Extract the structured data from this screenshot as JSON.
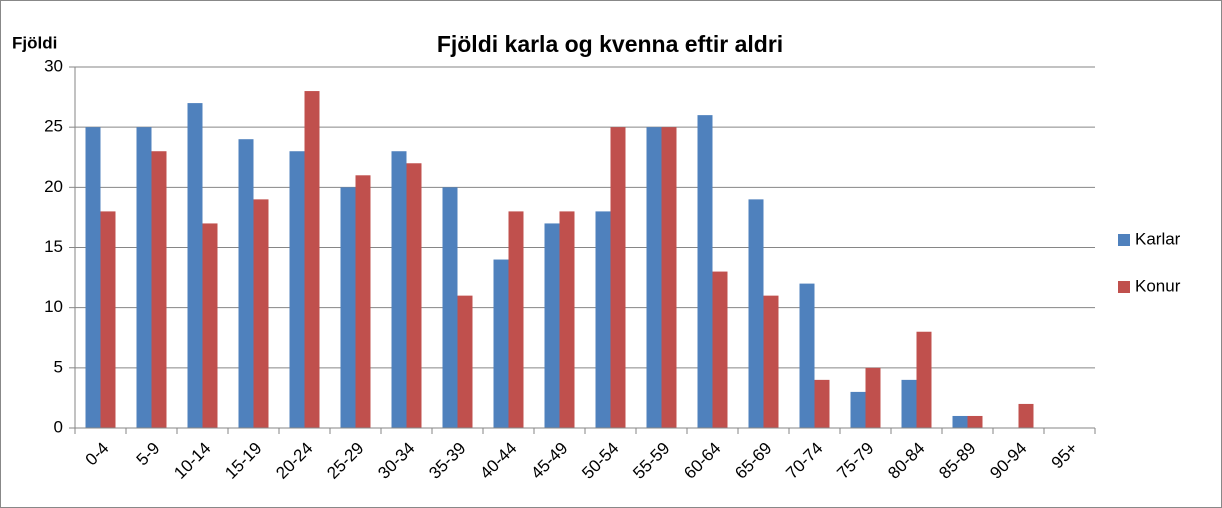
{
  "chart_data": {
    "type": "bar",
    "title": "Fjöldi karla og kvenna eftir aldri",
    "y_label": "Fjöldi",
    "categories": [
      "0-4",
      "5-9",
      "10-14",
      "15-19",
      "20-24",
      "25-29",
      "30-34",
      "35-39",
      "40-44",
      "45-49",
      "50-54",
      "55-59",
      "60-64",
      "65-69",
      "70-74",
      "75-79",
      "80-84",
      "85-89",
      "90-94",
      "95+"
    ],
    "series": [
      {
        "name": "Karlar",
        "color": "#4f81bd",
        "values": [
          25,
          25,
          27,
          24,
          23,
          20,
          23,
          20,
          14,
          17,
          18,
          25,
          26,
          19,
          12,
          3,
          4,
          1,
          0,
          0
        ]
      },
      {
        "name": "Konur",
        "color": "#c0504d",
        "values": [
          18,
          23,
          17,
          19,
          28,
          21,
          22,
          11,
          18,
          18,
          25,
          25,
          13,
          11,
          4,
          5,
          8,
          1,
          2,
          0
        ]
      }
    ],
    "ylim": [
      0,
      30
    ],
    "yticks": [
      0,
      5,
      10,
      15,
      20,
      25,
      30
    ],
    "grid": true,
    "legend": "right"
  }
}
